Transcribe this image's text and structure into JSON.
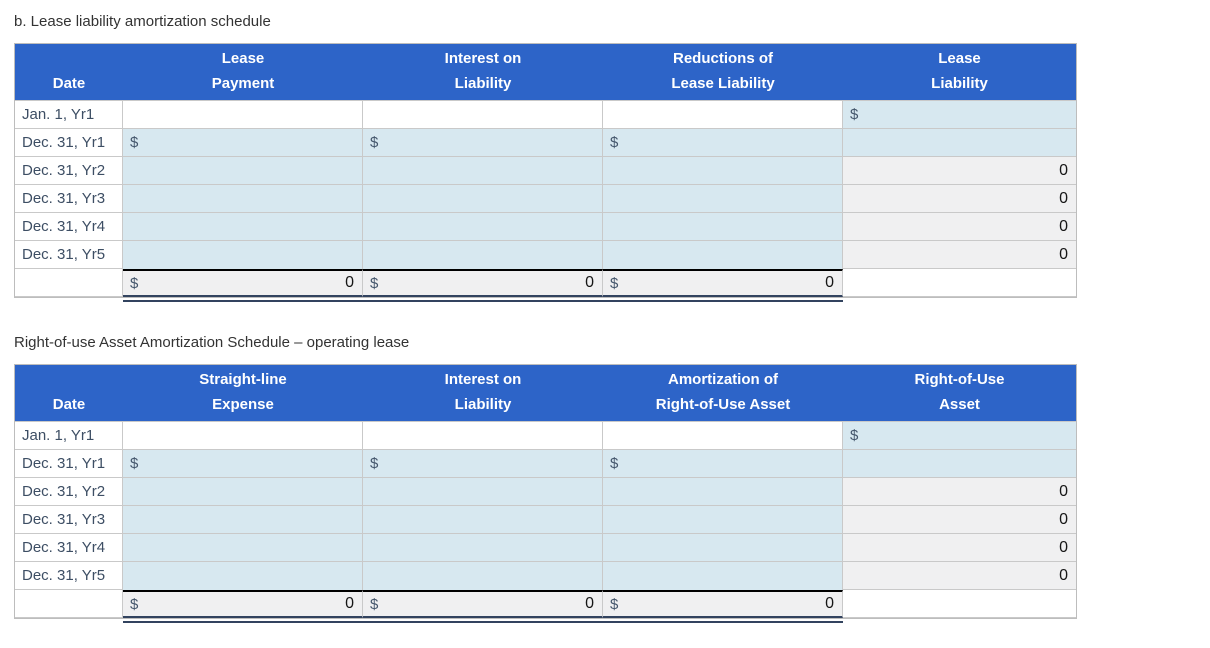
{
  "colors": {
    "header_blue": "#2d64c8",
    "input_cell_blue": "#d7e8f0",
    "computed_cell_gray": "#f0f0f1",
    "grid_border": "#c9c9c9",
    "total_top_border": "#000000",
    "double_underline_navy": "#32435f",
    "header_text": "#ffffff",
    "date_text": "#3d4e64"
  },
  "t1": {
    "title": "b. Lease liability amortization schedule",
    "headers": [
      {
        "l1": "",
        "l2": "Date"
      },
      {
        "l1": "Lease",
        "l2": "Payment"
      },
      {
        "l1": "Interest on",
        "l2": "Liability"
      },
      {
        "l1": "Reductions of",
        "l2": "Lease Liability"
      },
      {
        "l1": "Lease",
        "l2": "Liability"
      }
    ],
    "rows": [
      {
        "date": "Jan. 1, Yr1",
        "payment": "",
        "interest": "",
        "reductions": "",
        "balance_prefix": "$",
        "balance": ""
      },
      {
        "date": "Dec. 31, Yr1",
        "payment_prefix": "$",
        "payment": "",
        "interest_prefix": "$",
        "interest": "",
        "reductions_prefix": "$",
        "reductions": "",
        "balance": ""
      },
      {
        "date": "Dec. 31, Yr2",
        "payment": "",
        "interest": "",
        "reductions": "",
        "balance": "0"
      },
      {
        "date": "Dec. 31, Yr3",
        "payment": "",
        "interest": "",
        "reductions": "",
        "balance": "0"
      },
      {
        "date": "Dec. 31, Yr4",
        "payment": "",
        "interest": "",
        "reductions": "",
        "balance": "0"
      },
      {
        "date": "Dec. 31, Yr5",
        "payment": "",
        "interest": "",
        "reductions": "",
        "balance": "0"
      }
    ],
    "totals": {
      "date": "",
      "payment_prefix": "$",
      "payment": "0",
      "interest_prefix": "$",
      "interest": "0",
      "reductions_prefix": "$",
      "reductions": "0",
      "balance": ""
    }
  },
  "t2": {
    "title": "Right-of-use Asset Amortization Schedule – operating lease",
    "headers": [
      {
        "l1": "",
        "l2": "Date"
      },
      {
        "l1": "Straight-line",
        "l2": "Expense"
      },
      {
        "l1": "Interest on",
        "l2": "Liability"
      },
      {
        "l1": "Amortization of",
        "l2": "Right-of-Use Asset"
      },
      {
        "l1": "Right-of-Use",
        "l2": "Asset"
      }
    ],
    "rows": [
      {
        "date": "Jan. 1, Yr1",
        "expense": "",
        "interest": "",
        "amortization": "",
        "asset_prefix": "$",
        "asset": ""
      },
      {
        "date": "Dec. 31, Yr1",
        "expense_prefix": "$",
        "expense": "",
        "interest_prefix": "$",
        "interest": "",
        "amortization_prefix": "$",
        "amortization": "",
        "asset": ""
      },
      {
        "date": "Dec. 31, Yr2",
        "expense": "",
        "interest": "",
        "amortization": "",
        "asset": "0"
      },
      {
        "date": "Dec. 31, Yr3",
        "expense": "",
        "interest": "",
        "amortization": "",
        "asset": "0"
      },
      {
        "date": "Dec. 31, Yr4",
        "expense": "",
        "interest": "",
        "amortization": "",
        "asset": "0"
      },
      {
        "date": "Dec. 31, Yr5",
        "expense": "",
        "interest": "",
        "amortization": "",
        "asset": "0"
      }
    ],
    "totals": {
      "date": "",
      "expense_prefix": "$",
      "expense": "0",
      "interest_prefix": "$",
      "interest": "0",
      "amortization_prefix": "$",
      "amortization": "0",
      "asset": ""
    }
  }
}
